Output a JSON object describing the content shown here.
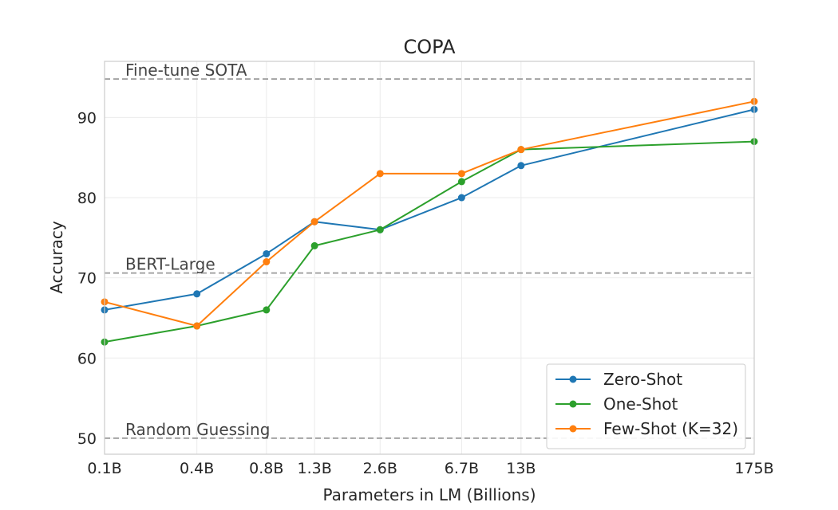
{
  "chart_data": {
    "type": "line",
    "title": "COPA",
    "xlabel": "Parameters in LM (Billions)",
    "ylabel": "Accuracy",
    "categories": [
      "0.1B",
      "0.4B",
      "0.8B",
      "1.3B",
      "2.6B",
      "6.7B",
      "13B",
      "175B"
    ],
    "x_values": [
      0.125,
      0.35,
      0.76,
      1.3,
      2.7,
      6.7,
      13,
      175
    ],
    "x_scale": "log",
    "ylim": [
      48,
      97
    ],
    "yticks": [
      50,
      60,
      70,
      80,
      90
    ],
    "grid": true,
    "legend_position": "bottom-right",
    "series": [
      {
        "name": "Zero-Shot",
        "color": "#1f77b4",
        "values": [
          66,
          68,
          73,
          77,
          76,
          80,
          84,
          91
        ]
      },
      {
        "name": "One-Shot",
        "color": "#2ca02c",
        "values": [
          62,
          64,
          66,
          74,
          76,
          82,
          86,
          87
        ]
      },
      {
        "name": "Few-Shot (K=32)",
        "color": "#ff7f0e",
        "values": [
          67,
          64,
          72,
          77,
          83,
          83,
          86,
          92
        ]
      }
    ],
    "reference_lines": [
      {
        "label": "Fine-tune SOTA",
        "value": 94.8,
        "color": "#999999"
      },
      {
        "label": "BERT-Large",
        "value": 70.6,
        "color": "#999999"
      },
      {
        "label": "Random Guessing",
        "value": 50,
        "color": "#999999"
      }
    ]
  }
}
